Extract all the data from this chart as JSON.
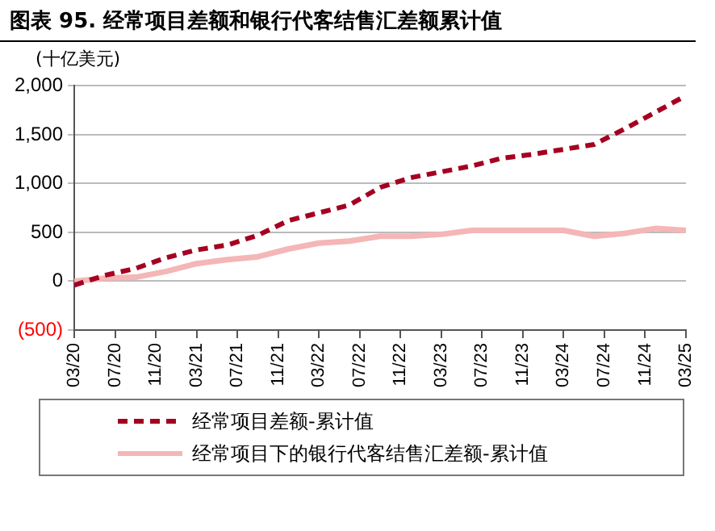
{
  "chart_data": {
    "type": "line",
    "title": "图表 95. 经常项目差额和银行代客结售汇差额累计值",
    "ylabel": "(十亿美元)",
    "x": [
      "2020-03",
      "2020-06",
      "2020-09",
      "2020-12",
      "2021-03",
      "2021-06",
      "2021-09",
      "2021-12",
      "2022-03",
      "2022-06",
      "2022-09",
      "2022-12",
      "2023-03",
      "2023-06",
      "2023-09",
      "2023-12",
      "2024-03",
      "2024-06",
      "2024-09",
      "2024-12",
      "2025-03"
    ],
    "series": [
      {
        "name": "经常项目差额-累计值",
        "color": "#a50021",
        "line_style": "dashed",
        "values": [
          -40,
          60,
          130,
          240,
          320,
          370,
          470,
          620,
          700,
          780,
          960,
          1060,
          1120,
          1180,
          1260,
          1300,
          1350,
          1400,
          1560,
          1730,
          1900
        ]
      },
      {
        "name": "经常项目下的银行代客结售汇差额-累计值",
        "color": "#f4b6b6",
        "line_style": "solid",
        "values": [
          0,
          30,
          40,
          100,
          180,
          220,
          250,
          330,
          390,
          410,
          460,
          460,
          480,
          520,
          520,
          520,
          520,
          460,
          490,
          540,
          520
        ]
      }
    ],
    "xlim": [
      "2020-03",
      "2025-03"
    ],
    "xticks": [
      {
        "value": "2020-03",
        "label": "03/20"
      },
      {
        "value": "2020-07",
        "label": "07/20"
      },
      {
        "value": "2020-11",
        "label": "11/20"
      },
      {
        "value": "2021-03",
        "label": "03/21"
      },
      {
        "value": "2021-07",
        "label": "07/21"
      },
      {
        "value": "2021-11",
        "label": "11/21"
      },
      {
        "value": "2022-03",
        "label": "03/22"
      },
      {
        "value": "2022-07",
        "label": "07/22"
      },
      {
        "value": "2022-11",
        "label": "11/22"
      },
      {
        "value": "2023-03",
        "label": "03/23"
      },
      {
        "value": "2023-07",
        "label": "07/23"
      },
      {
        "value": "2023-11",
        "label": "11/23"
      },
      {
        "value": "2024-03",
        "label": "03/24"
      },
      {
        "value": "2024-07",
        "label": "07/24"
      },
      {
        "value": "2024-11",
        "label": "11/24"
      },
      {
        "value": "2025-03",
        "label": "03/25"
      }
    ],
    "ylim": [
      -500,
      2000
    ],
    "yticks": [
      {
        "value": -500,
        "label": "(500)"
      },
      {
        "value": 0,
        "label": "0"
      },
      {
        "value": 500,
        "label": "500"
      },
      {
        "value": 1000,
        "label": "1,000"
      },
      {
        "value": 1500,
        "label": "1,500"
      },
      {
        "value": 2000,
        "label": "2,000"
      }
    ],
    "grid": "y",
    "legend": "bottom",
    "marker": "none"
  }
}
